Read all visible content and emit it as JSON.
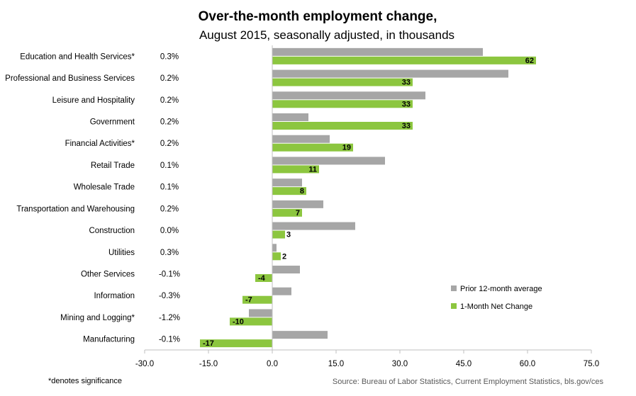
{
  "chart_data": {
    "type": "bar",
    "orientation": "horizontal",
    "title": "Over-the-month employment change,",
    "subtitle": "August 2015, seasonally adjusted, in thousands",
    "categories": [
      "Education and Health Services*",
      "Professional and Business Services",
      "Leisure and Hospitality",
      "Government",
      "Financial Activities*",
      "Retail Trade",
      "Wholesale Trade",
      "Transportation and Warehousing",
      "Construction",
      "Utilities",
      "Other Services",
      "Information",
      "Mining and Logging*",
      "Manufacturing"
    ],
    "percent_changes": [
      "0.3%",
      "0.2%",
      "0.2%",
      "0.2%",
      "0.2%",
      "0.1%",
      "0.1%",
      "0.2%",
      "0.0%",
      "0.3%",
      "-0.1%",
      "-0.3%",
      "-1.2%",
      "-0.1%"
    ],
    "series": [
      {
        "name": "Prior 12-month average",
        "color": "#a6a6a6",
        "values": [
          49.5,
          55.5,
          36,
          8.5,
          13.5,
          26.5,
          7,
          12,
          19.5,
          1,
          6.5,
          4.5,
          -5.5,
          13
        ]
      },
      {
        "name": "1-Month Net Change",
        "color": "#8cc63f",
        "values": [
          62,
          33,
          33,
          33,
          19,
          11,
          8,
          7,
          3,
          2,
          -4,
          -7,
          -10,
          -17
        ],
        "data_labels": [
          "62",
          "33",
          "33",
          "33",
          "19",
          "11",
          "8",
          "7",
          "3",
          "2",
          "-4",
          "-7",
          "-10",
          "-17"
        ]
      }
    ],
    "xlim": [
      -30,
      75
    ],
    "xticks": [
      "-30.0",
      "-15.0",
      "0.0",
      "15.0",
      "30.0",
      "45.0",
      "60.0",
      "75.0"
    ],
    "grid": false,
    "legend_position": "right"
  },
  "footnote": "*denotes significance",
  "source": "Source: Bureau of Labor Statistics, Current Employment Statistics, bls.gov/ces"
}
